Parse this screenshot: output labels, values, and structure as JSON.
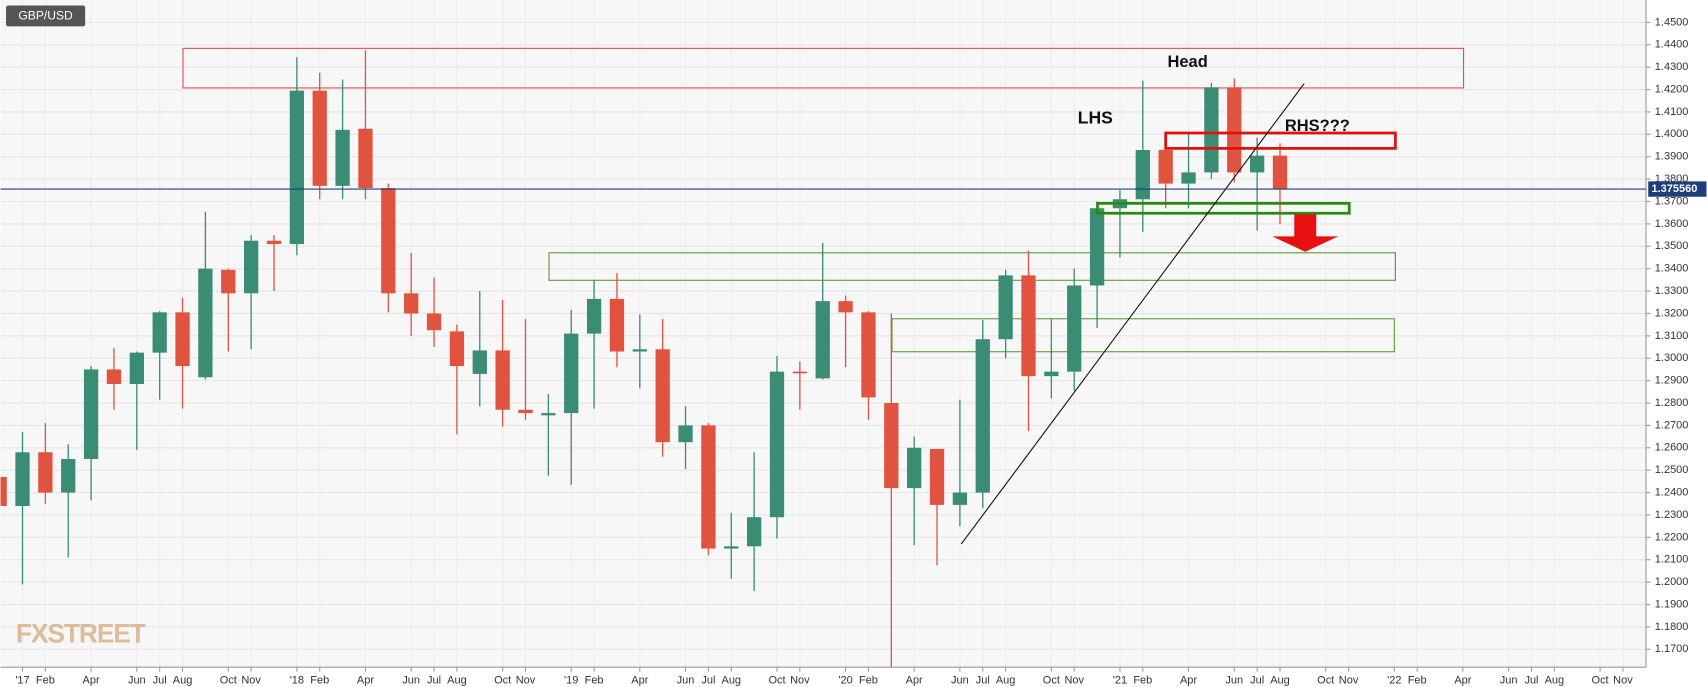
{
  "chart_data": {
    "type": "candlestick",
    "title": "GBP/USD",
    "brand": "FXSTREET",
    "annotations": [
      "Head",
      "LHS",
      "RHS???"
    ],
    "up_color": "#3a8c75",
    "down_color": "#e0533f",
    "grid": true,
    "categories": [
      null,
      "'17",
      "Feb",
      null,
      "Apr",
      null,
      "Jun",
      "Jul",
      "Aug",
      null,
      "Oct",
      "Nov",
      null,
      "'18",
      "Feb",
      null,
      "Apr",
      null,
      "Jun",
      "Jul",
      "Aug",
      null,
      "Oct",
      "Nov",
      null,
      "'19",
      "Feb",
      null,
      "Apr",
      null,
      "Jun",
      "Jul",
      "Aug",
      null,
      "Oct",
      "Nov",
      null,
      "'20",
      "Feb",
      null,
      "Apr",
      null,
      "Jun",
      "Jul",
      "Aug",
      null,
      "Oct",
      "Nov",
      null,
      "'21",
      "Feb",
      null,
      "Apr",
      null,
      "Jun",
      "Jul",
      "Aug",
      null,
      "Oct",
      "Nov",
      null,
      "'22",
      "Feb",
      null,
      "Apr",
      null,
      "Jun",
      "Jul",
      "Aug",
      null,
      "Oct",
      "Nov"
    ],
    "open": [
      1.247,
      1.234,
      1.258,
      1.24,
      1.255,
      1.295,
      1.2885,
      1.3025,
      1.3205,
      1.2915,
      1.3395,
      1.329,
      1.3525,
      1.351,
      1.4195,
      1.377,
      1.4025,
      1.376,
      1.329,
      1.32,
      1.312,
      1.293,
      1.3035,
      1.277,
      1.2745,
      1.2755,
      1.311,
      1.3265,
      1.303,
      1.304,
      1.2625,
      1.27,
      1.215,
      1.216,
      1.229,
      1.294,
      1.291,
      1.3255,
      1.3205,
      1.28,
      1.242,
      1.2595,
      1.2345,
      1.24,
      1.3085,
      1.337,
      1.292,
      1.294,
      1.3325,
      1.367,
      1.371,
      1.393,
      1.378,
      1.383,
      1.421,
      1.383,
      1.3905,
      null,
      null,
      null,
      null,
      null,
      null,
      null,
      null,
      null,
      null,
      null,
      null,
      null,
      null,
      null
    ],
    "high": [
      1.2775,
      1.267,
      1.271,
      1.2615,
      1.2965,
      1.3045,
      1.303,
      1.321,
      1.327,
      1.3655,
      1.34,
      1.355,
      1.355,
      1.4345,
      1.4275,
      1.4245,
      1.4375,
      1.378,
      1.347,
      1.336,
      1.315,
      1.33,
      1.326,
      1.3175,
      1.284,
      1.3215,
      1.335,
      1.338,
      1.3195,
      1.3175,
      1.2785,
      1.271,
      1.231,
      1.258,
      1.301,
      1.2985,
      1.3515,
      1.328,
      1.321,
      1.32,
      1.265,
      1.2595,
      1.2815,
      1.317,
      1.3395,
      1.348,
      1.3175,
      1.34,
      1.37,
      1.375,
      1.424,
      1.4,
      1.401,
      1.423,
      1.425,
      1.3985,
      1.396,
      null,
      null,
      null,
      null,
      null,
      null,
      null,
      null,
      null,
      null,
      null,
      null,
      null,
      null,
      null
    ],
    "low": [
      1.22,
      1.199,
      1.235,
      1.211,
      1.2365,
      1.277,
      1.259,
      1.2815,
      1.2775,
      1.2905,
      1.303,
      1.304,
      1.33,
      1.346,
      1.371,
      1.371,
      1.371,
      1.3205,
      1.31,
      1.305,
      1.266,
      1.2785,
      1.2695,
      1.2725,
      1.2475,
      1.2435,
      1.2775,
      1.296,
      1.2865,
      1.256,
      1.2505,
      1.212,
      1.2015,
      1.196,
      1.2195,
      1.277,
      1.2905,
      1.296,
      1.2725,
      1.141,
      1.2165,
      1.2075,
      1.225,
      1.233,
      1.3,
      1.2675,
      1.282,
      1.2855,
      1.3135,
      1.345,
      1.3565,
      1.367,
      1.367,
      1.38,
      1.3785,
      1.357,
      1.36,
      null,
      null,
      null,
      null,
      null,
      null,
      null,
      null,
      null,
      null,
      null,
      null,
      null,
      null,
      null
    ],
    "close": [
      1.234,
      1.258,
      1.24,
      1.255,
      1.295,
      1.2885,
      1.3025,
      1.3205,
      1.2965,
      1.34,
      1.329,
      1.3525,
      1.351,
      1.4195,
      1.377,
      1.402,
      1.376,
      1.329,
      1.32,
      1.3125,
      1.2965,
      1.3035,
      1.277,
      1.2755,
      1.2755,
      1.311,
      1.3265,
      1.303,
      1.304,
      1.2625,
      1.27,
      1.215,
      1.216,
      1.229,
      1.294,
      1.2935,
      1.3255,
      1.3205,
      1.2825,
      1.242,
      1.26,
      1.2345,
      1.24,
      1.3085,
      1.337,
      1.292,
      1.294,
      1.3325,
      1.367,
      1.371,
      1.393,
      1.378,
      1.383,
      1.421,
      1.383,
      1.3905,
      1.3755,
      null,
      null,
      null,
      null,
      null,
      null,
      null,
      null,
      null,
      null,
      null,
      null,
      null,
      null,
      null
    ],
    "current_price": {
      "value": 1.37556,
      "label": "1.375560"
    },
    "ylim": [
      1.162,
      1.46
    ],
    "yticks": [
      {
        "value": 1.17,
        "label": "1.1700"
      },
      {
        "value": 1.18,
        "label": "1.1800"
      },
      {
        "value": 1.19,
        "label": "1.1900"
      },
      {
        "value": 1.2,
        "label": "1.2000"
      },
      {
        "value": 1.21,
        "label": "1.2100"
      },
      {
        "value": 1.22,
        "label": "1.2200"
      },
      {
        "value": 1.23,
        "label": "1.2300"
      },
      {
        "value": 1.24,
        "label": "1.2400"
      },
      {
        "value": 1.25,
        "label": "1.2500"
      },
      {
        "value": 1.26,
        "label": "1.2600"
      },
      {
        "value": 1.27,
        "label": "1.2700"
      },
      {
        "value": 1.28,
        "label": "1.2800"
      },
      {
        "value": 1.29,
        "label": "1.2900"
      },
      {
        "value": 1.3,
        "label": "1.3000"
      },
      {
        "value": 1.31,
        "label": "1.3100"
      },
      {
        "value": 1.32,
        "label": "1.3200"
      },
      {
        "value": 1.33,
        "label": "1.3300"
      },
      {
        "value": 1.34,
        "label": "1.3400"
      },
      {
        "value": 1.35,
        "label": "1.3500"
      },
      {
        "value": 1.36,
        "label": "1.3600"
      },
      {
        "value": 1.37,
        "label": "1.3700"
      },
      {
        "value": 1.38,
        "label": "1.3800"
      },
      {
        "value": 1.39,
        "label": "1.3900"
      },
      {
        "value": 1.4,
        "label": "1.4000"
      },
      {
        "value": 1.41,
        "label": "1.4100"
      },
      {
        "value": 1.42,
        "label": "1.4200"
      },
      {
        "value": 1.43,
        "label": "1.4300"
      },
      {
        "value": 1.44,
        "label": "1.4400"
      },
      {
        "value": 1.45,
        "label": "1.4500"
      }
    ]
  }
}
